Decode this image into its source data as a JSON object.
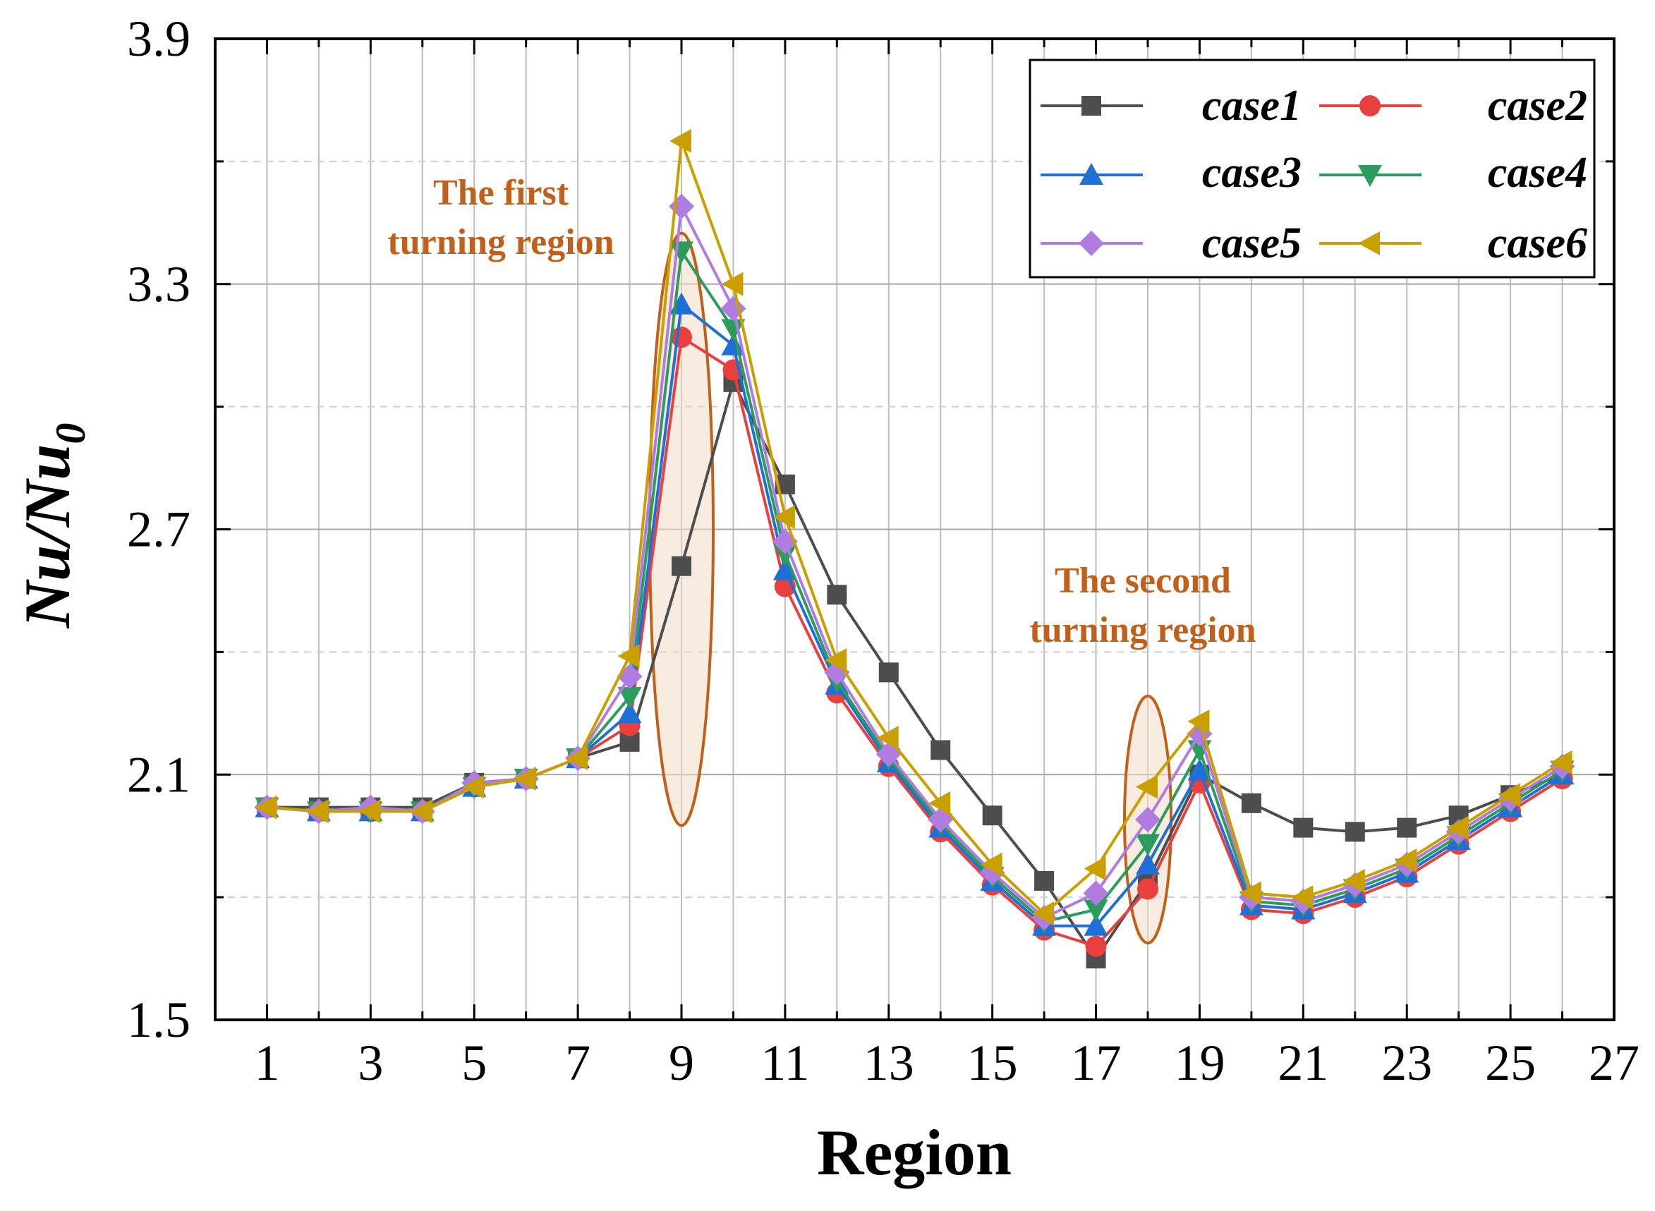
{
  "chart_data": {
    "type": "line",
    "title": "",
    "xlabel": "Region",
    "ylabel": "Nu/Nu0",
    "ylabel_main": "Nu/Nu",
    "ylabel_sub": "0",
    "xlim": [
      0,
      27
    ],
    "ylim": [
      1.5,
      3.9
    ],
    "xticks": [
      "1",
      "3",
      "5",
      "7",
      "9",
      "11",
      "13",
      "15",
      "17",
      "19",
      "21",
      "23",
      "25",
      "27"
    ],
    "yticks": [
      "1.5",
      "2.1",
      "2.7",
      "3.3",
      "3.9"
    ],
    "grid": true,
    "legend_position": "top-right",
    "x": [
      1,
      2,
      3,
      4,
      5,
      6,
      7,
      8,
      9,
      10,
      11,
      12,
      13,
      14,
      15,
      16,
      17,
      18,
      19,
      20,
      21,
      22,
      23,
      24,
      25,
      26
    ],
    "series": [
      {
        "name": "case1",
        "color": "#4d4d4d",
        "marker": "square",
        "values": [
          2.02,
          2.02,
          2.02,
          2.02,
          2.08,
          2.09,
          2.14,
          2.18,
          2.61,
          3.06,
          2.81,
          2.54,
          2.35,
          2.16,
          2.0,
          1.84,
          1.65,
          1.84,
          2.1,
          2.03,
          1.97,
          1.96,
          1.97,
          2.0,
          2.05,
          2.1
        ]
      },
      {
        "name": "case2",
        "color": "#e8403e",
        "marker": "circle",
        "values": [
          2.02,
          2.01,
          2.01,
          2.01,
          2.07,
          2.09,
          2.14,
          2.22,
          3.17,
          3.09,
          2.56,
          2.3,
          2.12,
          1.96,
          1.83,
          1.72,
          1.68,
          1.82,
          2.08,
          1.77,
          1.76,
          1.8,
          1.85,
          1.93,
          2.01,
          2.09
        ]
      },
      {
        "name": "case3",
        "color": "#1f6fd6",
        "marker": "triangle-up",
        "values": [
          2.02,
          2.01,
          2.01,
          2.01,
          2.07,
          2.09,
          2.14,
          2.25,
          3.25,
          3.15,
          2.6,
          2.32,
          2.13,
          1.97,
          1.84,
          1.73,
          1.73,
          1.88,
          2.11,
          1.78,
          1.77,
          1.81,
          1.86,
          1.94,
          2.02,
          2.1
        ]
      },
      {
        "name": "case4",
        "color": "#2a9d5c",
        "marker": "triangle-down",
        "values": [
          2.02,
          2.01,
          2.01,
          2.01,
          2.07,
          2.09,
          2.14,
          2.29,
          3.38,
          3.19,
          2.64,
          2.33,
          2.14,
          1.98,
          1.85,
          1.74,
          1.77,
          1.93,
          2.16,
          1.79,
          1.78,
          1.82,
          1.87,
          1.95,
          2.03,
          2.11
        ]
      },
      {
        "name": "case5",
        "color": "#b07ce0",
        "marker": "diamond",
        "values": [
          2.02,
          2.01,
          2.02,
          2.01,
          2.08,
          2.09,
          2.14,
          2.34,
          3.49,
          3.24,
          2.67,
          2.35,
          2.15,
          1.99,
          1.86,
          1.75,
          1.81,
          1.99,
          2.2,
          1.8,
          1.79,
          1.83,
          1.88,
          1.96,
          2.04,
          2.12
        ]
      },
      {
        "name": "case6",
        "color": "#c9a000",
        "marker": "triangle-left",
        "values": [
          2.02,
          2.01,
          2.01,
          2.01,
          2.07,
          2.09,
          2.14,
          2.39,
          3.65,
          3.3,
          2.73,
          2.38,
          2.19,
          2.03,
          1.88,
          1.76,
          1.87,
          2.07,
          2.23,
          1.81,
          1.8,
          1.84,
          1.89,
          1.97,
          2.05,
          2.13
        ]
      }
    ],
    "annotations": [
      {
        "line1": "The first",
        "line2": "turning region",
        "region": 9
      },
      {
        "line1": "The second",
        "line2": "turning region",
        "region": 18
      }
    ]
  }
}
